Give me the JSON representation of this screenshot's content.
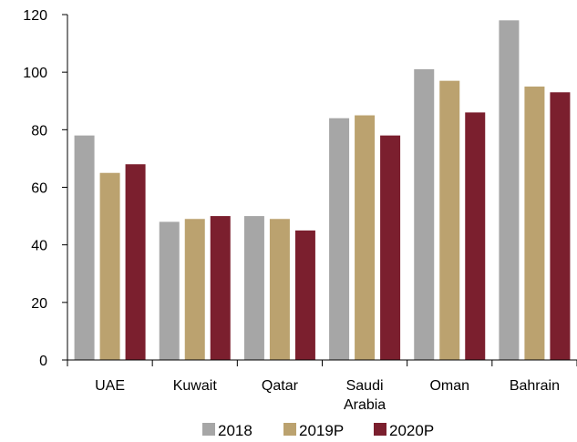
{
  "chart_data": {
    "type": "bar",
    "categories": [
      [
        "UAE"
      ],
      [
        "Kuwait"
      ],
      [
        "Qatar"
      ],
      [
        "Saudi",
        "Arabia"
      ],
      [
        "Oman"
      ],
      [
        "Bahrain"
      ]
    ],
    "series": [
      {
        "name": "2018",
        "color": "#a6a6a6",
        "values": [
          78,
          48,
          50,
          84,
          101,
          118
        ]
      },
      {
        "name": "2019P",
        "color": "#bba26f",
        "values": [
          65,
          49,
          49,
          85,
          97,
          95
        ]
      },
      {
        "name": "2020P",
        "color": "#7b1f2e",
        "values": [
          68,
          50,
          45,
          78,
          86,
          93
        ]
      }
    ],
    "ylim": [
      0,
      120
    ],
    "yticks": [
      0,
      20,
      40,
      60,
      80,
      100,
      120
    ],
    "title": "",
    "xlabel": "",
    "ylabel": "",
    "grid": false,
    "legend_position": "bottom"
  }
}
